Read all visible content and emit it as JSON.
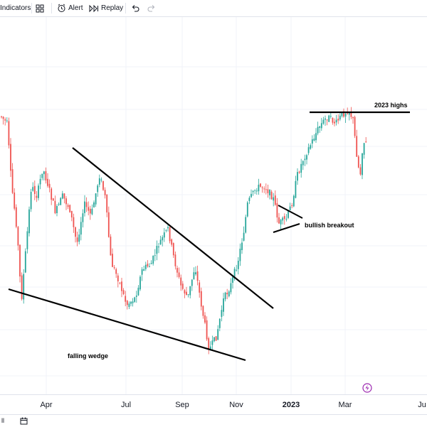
{
  "toolbar": {
    "indicators_label": "Indicators",
    "alert_label": "Alert",
    "replay_label": "Replay"
  },
  "bottom_bar": {
    "range_label": "ll"
  },
  "colors": {
    "up": "#26a69a",
    "down": "#ef5350",
    "trendline": "#000000",
    "grid": "#f0f3fa"
  },
  "chart_data": {
    "type": "candlestick",
    "x_ticks": [
      "Apr",
      "Jul",
      "Sep",
      "Nov",
      "2023",
      "Mar",
      "Ju"
    ],
    "annotations": [
      "2023 highs",
      "bullish breakout",
      "falling wedge"
    ],
    "grid": true
  }
}
